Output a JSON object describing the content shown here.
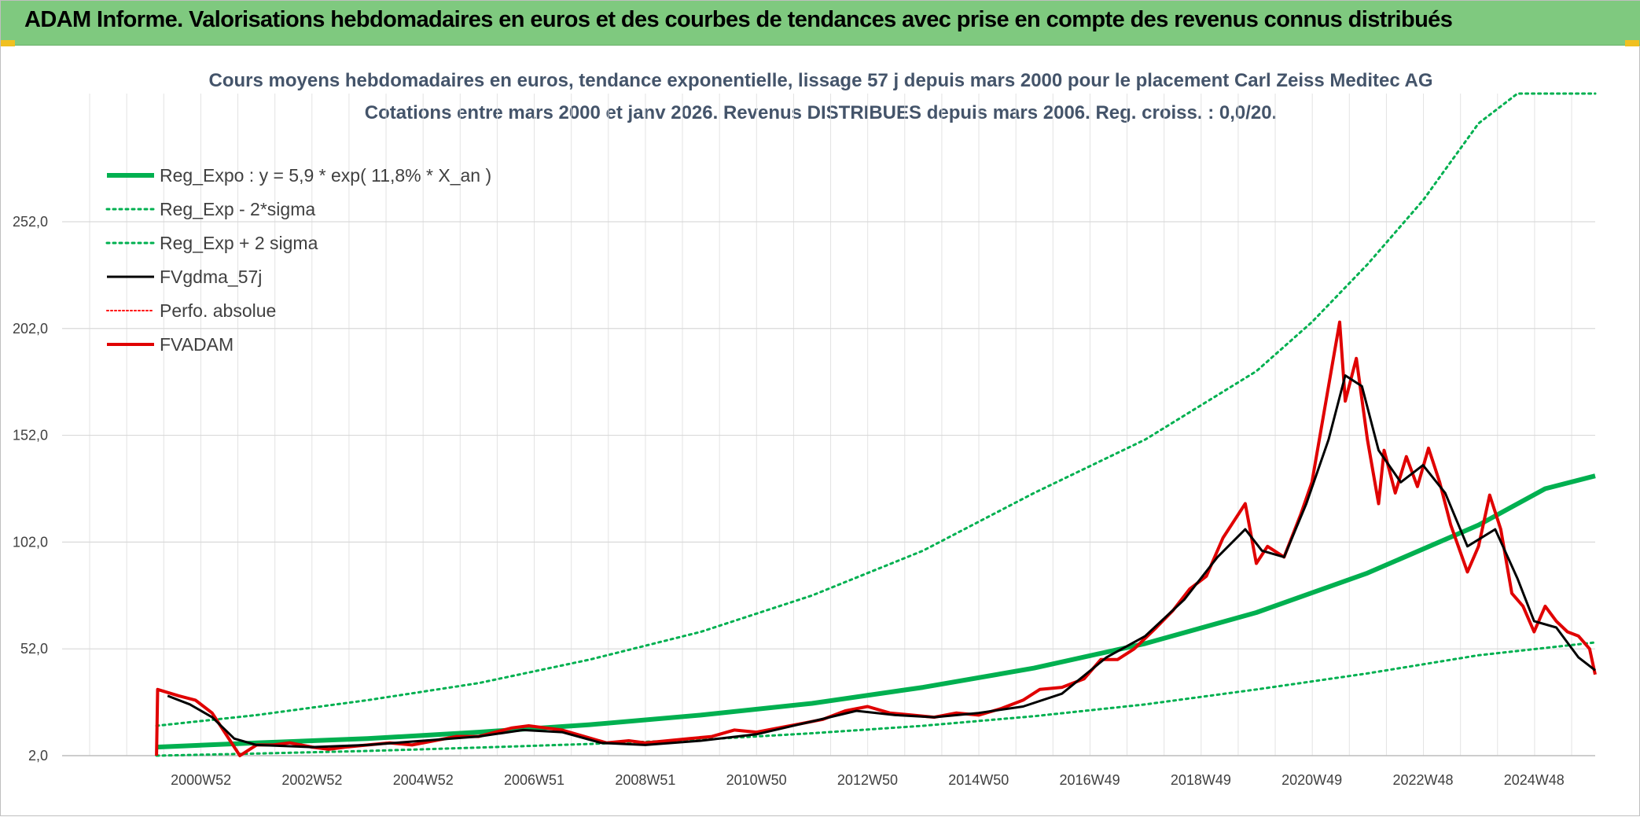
{
  "banner": {
    "title": "ADAM Informe. Valorisations hebdomadaires en euros et des courbes de tendances avec prise en compte des revenus connus distribués",
    "color": "#7fc97f"
  },
  "chart_data": {
    "type": "line",
    "title_line1": "Cours moyens hebdomadaires en euros, tendance exponentielle, lissage 57 j depuis mars 2000 pour le placement Carl Zeiss Meditec AG",
    "title_line2": "Cotations entre mars 2000 et janv 2026. Revenus DISTRIBUES depuis mars 2006. Reg. croiss. : 0,0/20.",
    "x_range": [
      1998.5,
      2026.1
    ],
    "y_range": [
      2,
      312
    ],
    "y_ticks": [
      {
        "value": 2,
        "label": "2,0"
      },
      {
        "value": 52,
        "label": "52,0"
      },
      {
        "value": 102,
        "label": "102,0"
      },
      {
        "value": 152,
        "label": "152,0"
      },
      {
        "value": 202,
        "label": "202,0"
      },
      {
        "value": 252,
        "label": "252,0"
      }
    ],
    "x_ticks": [
      {
        "x": 2001.0,
        "label": "2000W52"
      },
      {
        "x": 2003.0,
        "label": "2002W52"
      },
      {
        "x": 2005.0,
        "label": "2004W52"
      },
      {
        "x": 2007.0,
        "label": "2006W51"
      },
      {
        "x": 2009.0,
        "label": "2008W51"
      },
      {
        "x": 2011.0,
        "label": "2010W50"
      },
      {
        "x": 2013.0,
        "label": "2012W50"
      },
      {
        "x": 2015.0,
        "label": "2014W50"
      },
      {
        "x": 2017.0,
        "label": "2016W49"
      },
      {
        "x": 2019.0,
        "label": "2018W49"
      },
      {
        "x": 2021.0,
        "label": "2020W49"
      },
      {
        "x": 2023.0,
        "label": "2022W48"
      },
      {
        "x": 2025.0,
        "label": "2024W48"
      }
    ],
    "grid": true,
    "legend_position": "top-left",
    "series": [
      {
        "name": "Reg_Expo : y = 5,9 * exp( 11,8% *  X_an )",
        "color": "#00b050",
        "style": "solid",
        "width": 6,
        "points": [
          [
            2000.2,
            6
          ],
          [
            2002,
            8
          ],
          [
            2004,
            10
          ],
          [
            2006,
            13
          ],
          [
            2008,
            16.5
          ],
          [
            2010,
            21
          ],
          [
            2012,
            26.5
          ],
          [
            2014,
            34
          ],
          [
            2016,
            43
          ],
          [
            2018,
            54.5
          ],
          [
            2020,
            69
          ],
          [
            2022,
            87.5
          ],
          [
            2024,
            110
          ],
          [
            2025.2,
            127
          ],
          [
            2026.1,
            133
          ]
        ]
      },
      {
        "name": "Reg_Exp - 2*sigma",
        "color": "#00b050",
        "style": "dotted",
        "width": 3,
        "points": [
          [
            2000.2,
            2
          ],
          [
            2002,
            3
          ],
          [
            2004,
            4.2
          ],
          [
            2006,
            5.8
          ],
          [
            2008,
            7.5
          ],
          [
            2010,
            9.5
          ],
          [
            2012,
            12.5
          ],
          [
            2014,
            16
          ],
          [
            2016,
            20.5
          ],
          [
            2018,
            26
          ],
          [
            2020,
            33
          ],
          [
            2022,
            40.5
          ],
          [
            2024,
            49
          ],
          [
            2026.1,
            55
          ]
        ]
      },
      {
        "name": "Reg_Exp + 2 sigma",
        "color": "#00b050",
        "style": "dotted",
        "width": 3,
        "points": [
          [
            2000.2,
            16
          ],
          [
            2002,
            21
          ],
          [
            2004,
            28
          ],
          [
            2006,
            36
          ],
          [
            2008,
            47
          ],
          [
            2010,
            60
          ],
          [
            2012,
            77
          ],
          [
            2014,
            98
          ],
          [
            2016,
            125
          ],
          [
            2018,
            150
          ],
          [
            2020,
            182
          ],
          [
            2021,
            205
          ],
          [
            2022,
            232
          ],
          [
            2023,
            262
          ],
          [
            2024,
            298
          ],
          [
            2024.7,
            312
          ],
          [
            2026.1,
            312
          ]
        ]
      },
      {
        "name": "FVgdma_57j",
        "color": "#000000",
        "style": "solid",
        "width": 3,
        "points": [
          [
            2000.4,
            30
          ],
          [
            2000.8,
            26
          ],
          [
            2001.2,
            20
          ],
          [
            2001.6,
            10
          ],
          [
            2002,
            7
          ],
          [
            2003,
            6
          ],
          [
            2004,
            7
          ],
          [
            2005,
            9
          ],
          [
            2006,
            11
          ],
          [
            2006.8,
            14
          ],
          [
            2007.5,
            13
          ],
          [
            2008.2,
            8
          ],
          [
            2009,
            7
          ],
          [
            2010,
            9
          ],
          [
            2011,
            12
          ],
          [
            2012,
            18
          ],
          [
            2012.8,
            23
          ],
          [
            2013.5,
            21
          ],
          [
            2014.2,
            20
          ],
          [
            2015,
            22
          ],
          [
            2015.8,
            25
          ],
          [
            2016.5,
            31
          ],
          [
            2017.3,
            48
          ],
          [
            2018,
            58
          ],
          [
            2018.7,
            75
          ],
          [
            2019.3,
            95
          ],
          [
            2019.8,
            108
          ],
          [
            2020.1,
            98
          ],
          [
            2020.5,
            95
          ],
          [
            2020.9,
            120
          ],
          [
            2021.3,
            150
          ],
          [
            2021.6,
            180
          ],
          [
            2021.9,
            175
          ],
          [
            2022.2,
            145
          ],
          [
            2022.6,
            130
          ],
          [
            2023,
            138
          ],
          [
            2023.4,
            125
          ],
          [
            2023.8,
            100
          ],
          [
            2024.3,
            108
          ],
          [
            2024.7,
            85
          ],
          [
            2025,
            65
          ],
          [
            2025.4,
            62
          ],
          [
            2025.8,
            48
          ],
          [
            2026.1,
            42
          ]
        ]
      },
      {
        "name": "Perfo. absolue",
        "color": "#ff0000",
        "style": "dotted",
        "width": 2,
        "points": []
      },
      {
        "name": "FVADAM",
        "color": "#e00000",
        "style": "solid",
        "width": 4,
        "points": [
          [
            2000.2,
            2
          ],
          [
            2000.22,
            33
          ],
          [
            2000.6,
            30
          ],
          [
            2000.9,
            28
          ],
          [
            2001.2,
            22
          ],
          [
            2001.4,
            14
          ],
          [
            2001.7,
            2
          ],
          [
            2002,
            7
          ],
          [
            2002.3,
            7
          ],
          [
            2002.6,
            8
          ],
          [
            2003,
            6
          ],
          [
            2003.3,
            5
          ],
          [
            2003.6,
            6
          ],
          [
            2004,
            7
          ],
          [
            2004.4,
            8
          ],
          [
            2004.8,
            7
          ],
          [
            2005.2,
            9
          ],
          [
            2005.6,
            11
          ],
          [
            2006,
            11
          ],
          [
            2006.3,
            13
          ],
          [
            2006.6,
            15
          ],
          [
            2006.9,
            16
          ],
          [
            2007.2,
            15
          ],
          [
            2007.5,
            14
          ],
          [
            2007.9,
            11
          ],
          [
            2008.3,
            8
          ],
          [
            2008.7,
            9
          ],
          [
            2009,
            8
          ],
          [
            2009.4,
            9
          ],
          [
            2009.8,
            10
          ],
          [
            2010.2,
            11
          ],
          [
            2010.6,
            14
          ],
          [
            2011,
            13
          ],
          [
            2011.4,
            15
          ],
          [
            2011.8,
            17
          ],
          [
            2012.2,
            19
          ],
          [
            2012.6,
            23
          ],
          [
            2013,
            25
          ],
          [
            2013.4,
            22
          ],
          [
            2013.8,
            21
          ],
          [
            2014.2,
            20
          ],
          [
            2014.6,
            22
          ],
          [
            2015,
            21
          ],
          [
            2015.4,
            24
          ],
          [
            2015.8,
            28
          ],
          [
            2016.1,
            33
          ],
          [
            2016.5,
            34
          ],
          [
            2016.9,
            38
          ],
          [
            2017.2,
            47
          ],
          [
            2017.5,
            47
          ],
          [
            2017.8,
            52
          ],
          [
            2018.2,
            62
          ],
          [
            2018.5,
            70
          ],
          [
            2018.8,
            80
          ],
          [
            2019.1,
            86
          ],
          [
            2019.4,
            104
          ],
          [
            2019.6,
            112
          ],
          [
            2019.8,
            120
          ],
          [
            2020,
            92
          ],
          [
            2020.2,
            100
          ],
          [
            2020.5,
            95
          ],
          [
            2020.8,
            115
          ],
          [
            2021,
            130
          ],
          [
            2021.2,
            160
          ],
          [
            2021.4,
            190
          ],
          [
            2021.5,
            205
          ],
          [
            2021.6,
            168
          ],
          [
            2021.8,
            188
          ],
          [
            2022,
            150
          ],
          [
            2022.2,
            120
          ],
          [
            2022.3,
            145
          ],
          [
            2022.5,
            125
          ],
          [
            2022.7,
            142
          ],
          [
            2022.9,
            128
          ],
          [
            2023.1,
            146
          ],
          [
            2023.3,
            130
          ],
          [
            2023.5,
            110
          ],
          [
            2023.8,
            88
          ],
          [
            2024,
            100
          ],
          [
            2024.2,
            124
          ],
          [
            2024.4,
            108
          ],
          [
            2024.6,
            78
          ],
          [
            2024.8,
            72
          ],
          [
            2025,
            60
          ],
          [
            2025.2,
            72
          ],
          [
            2025.4,
            65
          ],
          [
            2025.6,
            60
          ],
          [
            2025.8,
            58
          ],
          [
            2026,
            52
          ],
          [
            2026.1,
            40
          ]
        ]
      }
    ]
  }
}
